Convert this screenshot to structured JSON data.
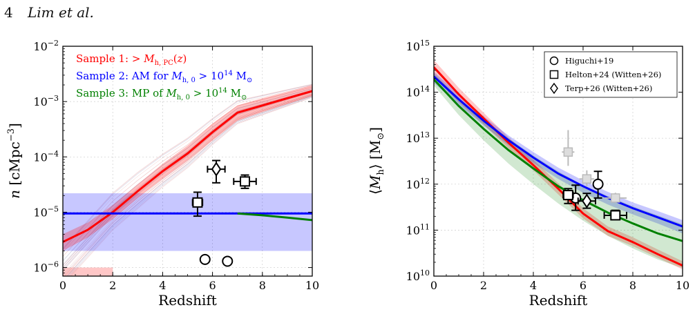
{
  "header": {
    "page_number": "4",
    "authors": "Lim et al."
  },
  "chart_data": [
    {
      "type": "line",
      "xlabel": "Redshift",
      "ylabel": "n [cMpc⁻³]",
      "xlim": [
        0,
        10
      ],
      "ylim": [
        7e-07,
        0.01
      ],
      "log_y": true,
      "grid": true,
      "x_ticks": [
        "0",
        "2",
        "4",
        "6",
        "8",
        "10"
      ],
      "y_ticks": [
        {
          "value": 1e-06,
          "base": "10",
          "exp": "−6"
        },
        {
          "value": 1e-05,
          "base": "10",
          "exp": "−5"
        },
        {
          "value": 0.0001,
          "base": "10",
          "exp": "−4"
        },
        {
          "value": 0.001,
          "base": "10",
          "exp": "−3"
        },
        {
          "value": 0.01,
          "base": "10",
          "exp": "−2"
        }
      ],
      "legend": {
        "placement": "top-left",
        "entries": [
          {
            "text": "Sample 1: > M_h,PC(z)",
            "color": "#ff0000"
          },
          {
            "text": "Sample 2: AM for M_h,0 > 10^14 M_⊙",
            "color": "#0000ff"
          },
          {
            "text": "Sample 3: MP of M_h,0 > 10^14 M_⊙",
            "color": "#008000"
          }
        ]
      },
      "series": [
        {
          "color": "#ff0000",
          "x": [
            0,
            1,
            2,
            3,
            4,
            5,
            6,
            7,
            8,
            9,
            10
          ],
          "y": [
            2.9e-06,
            4.8e-06,
            1e-05,
            2.4e-05,
            5.5e-05,
            0.000115,
            0.00028,
            0.00063,
            0.00085,
            0.00115,
            0.00155
          ]
        },
        {
          "color": "#0000ff",
          "x": [
            0,
            2,
            4,
            6,
            8,
            10
          ],
          "y": [
            9.5e-06,
            9.5e-06,
            9.5e-06,
            9.5e-06,
            9.5e-06,
            9.5e-06
          ]
        },
        {
          "color": "#008000",
          "x": [
            7,
            8,
            9,
            10
          ],
          "y": [
            9.5e-06,
            8.8e-06,
            8e-06,
            7.2e-06
          ]
        }
      ],
      "bands": [
        {
          "color": "#0000ff",
          "x": [
            0,
            10
          ],
          "lo": [
            2e-06,
            2e-06
          ],
          "hi": [
            2.2e-05,
            2.2e-05
          ]
        },
        {
          "color": "#ff0000",
          "x": [
            0,
            1,
            2,
            3,
            4,
            5,
            6,
            7,
            8,
            9,
            10
          ],
          "lo": [
            2e-06,
            3.5e-06,
            7.5e-06,
            1.8e-05,
            4e-05,
            8.5e-05,
            0.0002,
            0.00045,
            0.00065,
            0.0009,
            0.00125
          ],
          "hi": [
            4e-06,
            6.5e-06,
            1.35e-05,
            3.2e-05,
            7.5e-05,
            0.00016,
            0.0004,
            0.00085,
            0.00115,
            0.0015,
            0.002
          ]
        }
      ],
      "points": [
        {
          "marker": "diamond",
          "x": 6.15,
          "y": 6e-05,
          "xerr": 0.35,
          "ylo": 3.4e-05,
          "yhi": 8.6e-05
        },
        {
          "marker": "square",
          "x": 7.3,
          "y": 3.6e-05,
          "xerr": 0.45,
          "ylo": 2.7e-05,
          "yhi": 4.7e-05
        },
        {
          "marker": "square",
          "x": 5.4,
          "y": 1.5e-05,
          "xerr": 0.2,
          "ylo": 8.5e-06,
          "yhi": 2.3e-05
        },
        {
          "marker": "circle",
          "x": 5.7,
          "y": 1.4e-06,
          "xerr": 0,
          "ylo": 1.4e-06,
          "yhi": 1.4e-06
        },
        {
          "marker": "circle",
          "x": 6.6,
          "y": 1.3e-06,
          "xerr": 0,
          "ylo": 1.3e-06,
          "yhi": 1.3e-06
        }
      ]
    },
    {
      "type": "line",
      "xlabel": "Redshift",
      "ylabel": "⟨M_h⟩ [M_⊙]",
      "xlim": [
        0,
        10
      ],
      "ylim": [
        10000000000.0,
        1000000000000000.0
      ],
      "log_y": true,
      "grid": true,
      "x_ticks": [
        "0",
        "2",
        "4",
        "6",
        "8",
        "10"
      ],
      "y_ticks": [
        {
          "value": 10000000000.0,
          "base": "10",
          "exp": "10"
        },
        {
          "value": 100000000000.0,
          "base": "10",
          "exp": "11"
        },
        {
          "value": 1000000000000.0,
          "base": "10",
          "exp": "12"
        },
        {
          "value": 10000000000000.0,
          "base": "10",
          "exp": "13"
        },
        {
          "value": 100000000000000.0,
          "base": "10",
          "exp": "14"
        },
        {
          "value": 1000000000000000.0,
          "base": "10",
          "exp": "15"
        }
      ],
      "legend": {
        "placement": "top-right",
        "entries": [
          {
            "marker": "circle",
            "text": "Higuchi+19"
          },
          {
            "marker": "square",
            "text": "Helton+24 (Witten+26)"
          },
          {
            "marker": "diamond",
            "text": "Terp+26 (Witten+26)"
          }
        ]
      },
      "series": [
        {
          "color": "#ff0000",
          "x": [
            0,
            1,
            2,
            3,
            4,
            5,
            6,
            7,
            8,
            9,
            10
          ],
          "y": [
            350000000000000.0,
            90000000000000.0,
            27000000000000.0,
            8000000000000.0,
            2600000000000.0,
            800000000000.0,
            230000000000.0,
            95000000000.0,
            55000000000.0,
            30000000000.0,
            17000000000.0
          ]
        },
        {
          "color": "#0000ff",
          "x": [
            0,
            1,
            2,
            3,
            4,
            5,
            6,
            7,
            8,
            9,
            10
          ],
          "y": [
            220000000000000.0,
            70000000000000.0,
            24000000000000.0,
            9000000000000.0,
            3800000000000.0,
            1700000000000.0,
            900000000000.0,
            500000000000.0,
            300000000000.0,
            190000000000.0,
            120000000000.0
          ]
        },
        {
          "color": "#008000",
          "x": [
            0,
            1,
            2,
            3,
            4,
            5,
            6,
            7,
            8,
            9,
            10
          ],
          "y": [
            190000000000000.0,
            50000000000000.0,
            16000000000000.0,
            5500000000000.0,
            2200000000000.0,
            900000000000.0,
            450000000000.0,
            240000000000.0,
            140000000000.0,
            85000000000.0,
            58000000000.0
          ]
        }
      ],
      "bands": [
        {
          "color": "#ff0000",
          "x": [
            0,
            1,
            2,
            3,
            4,
            5,
            6,
            7,
            8,
            9,
            10
          ],
          "lo": [
            220000000000000.0,
            60000000000000.0,
            20000000000000.0,
            6000000000000.0,
            2000000000000.0,
            600000000000.0,
            180000000000.0,
            75000000000.0,
            45000000000.0,
            25000000000.0,
            14000000000.0
          ],
          "hi": [
            500000000000000.0,
            125000000000000.0,
            36000000000000.0,
            10500000000000.0,
            3400000000000.0,
            1050000000000.0,
            300000000000.0,
            120000000000.0,
            70000000000.0,
            38000000000.0,
            21000000000.0
          ]
        },
        {
          "color": "#0000ff",
          "x": [
            0,
            1,
            2,
            3,
            4,
            5,
            6,
            7,
            8,
            9,
            10
          ],
          "lo": [
            160000000000000.0,
            53000000000000.0,
            19000000000000.0,
            7000000000000.0,
            2900000000000.0,
            1300000000000.0,
            650000000000.0,
            360000000000.0,
            220000000000.0,
            140000000000.0,
            85000000000.0
          ],
          "hi": [
            280000000000000.0,
            90000000000000.0,
            30000000000000.0,
            11500000000000.0,
            5000000000000.0,
            2300000000000.0,
            1200000000000.0,
            680000000000.0,
            400000000000.0,
            260000000000.0,
            165000000000.0
          ]
        },
        {
          "color": "#008000",
          "x": [
            0,
            1,
            2,
            3,
            4,
            5,
            6,
            7,
            8,
            9,
            10
          ],
          "lo": [
            140000000000000.0,
            32000000000000.0,
            9000000000000.0,
            2800000000000.0,
            1000000000000.0,
            380000000000.0,
            160000000000.0,
            75000000000.0,
            40000000000.0,
            23000000000.0,
            15000000000.0
          ],
          "hi": [
            260000000000000.0,
            75000000000000.0,
            26000000000000.0,
            10000000000000.0,
            4200000000000.0,
            1900000000000.0,
            950000000000.0,
            550000000000.0,
            330000000000.0,
            210000000000.0,
            135000000000.0
          ]
        }
      ],
      "faded_points": [
        {
          "x": 5.4,
          "y": 5000000000000.0,
          "xerr": 0.25,
          "ylo": 2500000000000.0,
          "yhi": 15000000000000.0
        },
        {
          "x": 6.15,
          "y": 1300000000000.0,
          "xerr": 0.3,
          "ylo": 900000000000.0,
          "yhi": 2000000000000.0
        },
        {
          "x": 7.3,
          "y": 500000000000.0,
          "xerr": 0.45,
          "ylo": 400000000000.0,
          "yhi": 650000000000.0
        }
      ],
      "points": [
        {
          "marker": "circle",
          "x": 6.6,
          "y": 1000000000000.0,
          "xerr": 0,
          "ylo": 500000000000.0,
          "yhi": 1900000000000.0
        },
        {
          "marker": "circle",
          "x": 5.7,
          "y": 500000000000.0,
          "xerr": 0,
          "ylo": 270000000000.0,
          "yhi": 950000000000.0
        },
        {
          "marker": "square",
          "x": 5.4,
          "y": 580000000000.0,
          "xerr": 0.2,
          "ylo": 380000000000.0,
          "yhi": 800000000000.0
        },
        {
          "marker": "diamond",
          "x": 6.15,
          "y": 430000000000.0,
          "xerr": 0.35,
          "ylo": 300000000000.0,
          "yhi": 630000000000.0
        },
        {
          "marker": "square",
          "x": 7.3,
          "y": 210000000000.0,
          "xerr": 0.45,
          "ylo": 170000000000.0,
          "yhi": 270000000000.0
        }
      ]
    }
  ]
}
